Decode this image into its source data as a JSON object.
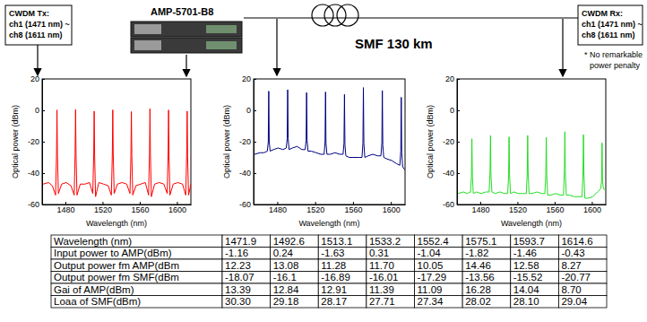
{
  "diagram": {
    "tx_box": [
      "CWDM Tx:",
      "ch1 (1471 nm) ~",
      "ch8 (1611 nm)"
    ],
    "amplifier": "AMP-5701-B8",
    "fiber": "SMF 130 km",
    "rx_box": [
      "CWDM Rx:",
      "ch1 (1471 nm) ~",
      "ch8 (1611 nm)"
    ],
    "note": [
      "* No remarkable",
      "power penalty"
    ]
  },
  "chart_data": [
    {
      "type": "line",
      "x_label": "Wavelength (nm)",
      "y_label": "Optical power (dBm)",
      "xlim": [
        1455,
        1615
      ],
      "xticks": [
        1480,
        1520,
        1560,
        1600
      ],
      "ylim": [
        -60,
        20
      ],
      "yticks": [
        -60,
        -40,
        -20,
        0,
        20
      ],
      "x": [
        1456,
        1462,
        1466,
        1469.5,
        1470.5,
        1471,
        1471.5,
        1472.5,
        1476,
        1481,
        1486,
        1489.5,
        1490.5,
        1491,
        1491.5,
        1492.5,
        1496,
        1501,
        1506,
        1509.5,
        1510.5,
        1511,
        1511.5,
        1512.5,
        1516,
        1521,
        1526,
        1529.5,
        1530.5,
        1531,
        1531.5,
        1532.5,
        1536,
        1541,
        1546,
        1549.5,
        1550.5,
        1551,
        1551.5,
        1552.5,
        1556,
        1561,
        1566,
        1569.5,
        1570.5,
        1571,
        1571.5,
        1572.5,
        1576,
        1581,
        1586,
        1589.5,
        1590.5,
        1591,
        1591.5,
        1592.5,
        1596,
        1601,
        1606,
        1609.5,
        1610.5,
        1611,
        1611.5,
        1612.5,
        1615
      ],
      "series": [
        {
          "color": "#ff0000",
          "values": [
            -47,
            -46,
            -48,
            -54,
            -28,
            0.2,
            -29,
            -53,
            -47,
            -46,
            -48,
            -54,
            -27,
            0.5,
            -28,
            -54,
            -47,
            -47,
            -46,
            -53,
            -28,
            -0.5,
            -29,
            -55,
            -46,
            -47,
            -48,
            -54,
            -28,
            0.3,
            -28,
            -53,
            -47,
            -46,
            -47,
            -53,
            -29,
            -0.8,
            -29,
            -54,
            -48,
            -47,
            -46,
            -54,
            -27,
            1.0,
            -28,
            -55,
            -47,
            -46,
            -47,
            -53,
            -28,
            0.2,
            -29,
            -54,
            -47,
            -46,
            -47,
            -54,
            -28,
            -0.5,
            -29,
            -54,
            -47
          ]
        }
      ]
    },
    {
      "type": "line",
      "x_label": "Wavelength (nm)",
      "y_label": "Optical power (dBm)",
      "xlim": [
        1455,
        1615
      ],
      "xticks": [
        1480,
        1520,
        1560,
        1600
      ],
      "ylim": [
        -60,
        20
      ],
      "yticks": [
        -60,
        -40,
        -20,
        0,
        20
      ],
      "x": [
        1456,
        1462,
        1466,
        1469.5,
        1470.5,
        1471,
        1471.5,
        1472.5,
        1476,
        1481,
        1486,
        1489.5,
        1490.5,
        1491,
        1491.5,
        1492.5,
        1496,
        1501,
        1506,
        1509.5,
        1510.5,
        1511,
        1511.5,
        1512.5,
        1516,
        1521,
        1526,
        1529.5,
        1530.5,
        1531,
        1531.5,
        1532.5,
        1536,
        1541,
        1546,
        1549.5,
        1550.5,
        1551,
        1551.5,
        1552.5,
        1556,
        1561,
        1566,
        1569.5,
        1570.5,
        1571,
        1571.5,
        1572.5,
        1576,
        1581,
        1586,
        1589.5,
        1590.5,
        1591,
        1591.5,
        1592.5,
        1596,
        1601,
        1606,
        1609.5,
        1610.5,
        1611,
        1611.5,
        1612.5,
        1615
      ],
      "series": [
        {
          "color": "#000080",
          "values": [
            -28,
            -27,
            -27,
            -26,
            -20,
            12.2,
            -20,
            -26,
            -25,
            -24,
            -25,
            -24,
            -18,
            13.1,
            -18,
            -25,
            -24,
            -23,
            -25,
            -25,
            -19,
            11.3,
            -19,
            -26,
            -26,
            -27,
            -28,
            -28,
            -20,
            11.7,
            -21,
            -28,
            -28,
            -27,
            -28,
            -28,
            -21,
            10.1,
            -22,
            -29,
            -30,
            -30,
            -30,
            -30,
            -21,
            14.5,
            -21,
            -30,
            -29,
            -28,
            -29,
            -29,
            -21,
            12.6,
            -22,
            -30,
            -31,
            -32,
            -34,
            -35,
            -26,
            8.3,
            -27,
            -36,
            -38
          ]
        }
      ]
    },
    {
      "type": "line",
      "x_label": "Wavelength (nm)",
      "y_label": "Optical power (dBm)",
      "xlim": [
        1455,
        1615
      ],
      "xticks": [
        1480,
        1520,
        1560,
        1600
      ],
      "ylim": [
        -60,
        20
      ],
      "yticks": [
        -60,
        -40,
        -20,
        0,
        20
      ],
      "x": [
        1456,
        1462,
        1466,
        1469.5,
        1470.5,
        1471,
        1471.5,
        1472.5,
        1476,
        1481,
        1486,
        1489.5,
        1490.5,
        1491,
        1491.5,
        1492.5,
        1496,
        1501,
        1506,
        1509.5,
        1510.5,
        1511,
        1511.5,
        1512.5,
        1516,
        1521,
        1526,
        1529.5,
        1530.5,
        1531,
        1531.5,
        1532.5,
        1536,
        1541,
        1546,
        1549.5,
        1550.5,
        1551,
        1551.5,
        1552.5,
        1556,
        1561,
        1566,
        1569.5,
        1570.5,
        1571,
        1571.5,
        1572.5,
        1576,
        1581,
        1586,
        1589.5,
        1590.5,
        1591,
        1591.5,
        1592.5,
        1596,
        1601,
        1606,
        1609.5,
        1610.5,
        1611,
        1611.5,
        1612.5,
        1615
      ],
      "series": [
        {
          "color": "#22dd22",
          "values": [
            -53,
            -52,
            -53,
            -52,
            -42,
            -18.1,
            -42,
            -53,
            -52,
            -53,
            -52,
            -52,
            -40,
            -16.1,
            -41,
            -52,
            -53,
            -52,
            -53,
            -53,
            -41,
            -16.9,
            -41,
            -53,
            -52,
            -53,
            -53,
            -53,
            -40,
            -16.0,
            -40,
            -53,
            -53,
            -52,
            -53,
            -53,
            -41,
            -17.3,
            -41,
            -54,
            -54,
            -53,
            -54,
            -54,
            -38,
            -13.6,
            -39,
            -54,
            -54,
            -55,
            -55,
            -55,
            -39,
            -15.5,
            -40,
            -56,
            -56,
            -55,
            -52,
            -50,
            -45,
            -20.8,
            -45,
            -50,
            -51
          ]
        }
      ]
    }
  ],
  "table": {
    "rows": [
      [
        "Wavelength (nm)",
        "1471.9",
        "1492.6",
        "1513.1",
        "1533.2",
        "1552.4",
        "1575.1",
        "1593.7",
        "1614.6"
      ],
      [
        "Input power to AMP(dBm)",
        "-1.16",
        "0.24",
        "-1.63",
        "0.31",
        "-1.04",
        "-1.82",
        "-1.46",
        "-0.43"
      ],
      [
        "Output power fm AMP(dBm",
        "12.23",
        "13.08",
        "11.28",
        "11.70",
        "10.05",
        "14.46",
        "12.58",
        "8.27"
      ],
      [
        "Output power fm SMF(dBm",
        "-18.07",
        "-16.1",
        "-16.89",
        "-16.01",
        "-17.29",
        "-13.56",
        "-15.52",
        "-20.77"
      ],
      [
        "Gai of AMP(dBm)",
        "13.39",
        "12.84",
        "12.91",
        "11.39",
        "11.09",
        "16.28",
        "14.04",
        "8.70"
      ],
      [
        "Loaa of SMF(dBm)",
        "30.30",
        "29.18",
        "28.17",
        "27.71",
        "27.34",
        "28.02",
        "28.10",
        "29.04"
      ]
    ]
  }
}
